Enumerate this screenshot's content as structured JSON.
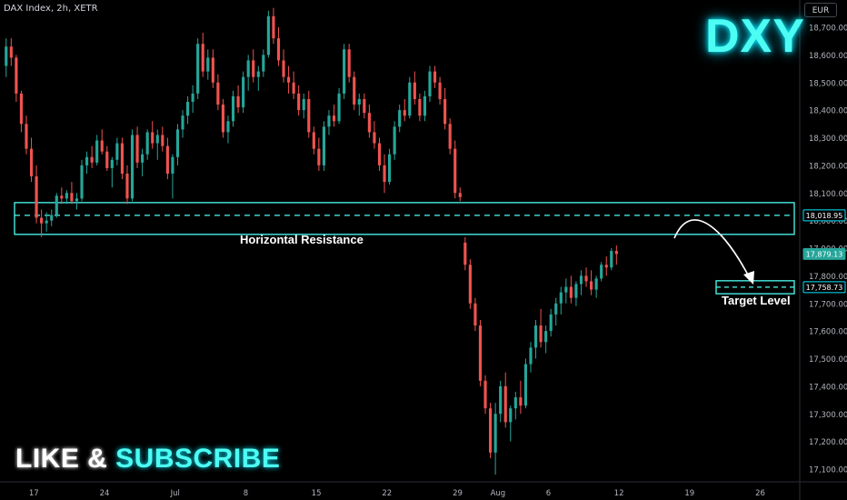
{
  "header": {
    "symbol_line": "DAX Index, 2h, XETR",
    "currency_button": "EUR"
  },
  "overlay": {
    "title": "DXY",
    "promo_part1": "LIKE & ",
    "promo_part2": "SUBSCRIBE",
    "resistance_label": "Horizontal Resistance",
    "target_label": "Target Level"
  },
  "colors": {
    "background": "#000000",
    "up_candle": "#26a69a",
    "down_candle": "#ef5350",
    "zone_stroke": "#4dfdf3",
    "accent_cyan": "#00e5ff",
    "arrow": "#ffffff",
    "last_price_tag": "#26a69a"
  },
  "chart_data": {
    "type": "candlestick",
    "ylim": [
      17060,
      18790
    ],
    "yticks": [
      17100,
      17200,
      17300,
      17400,
      17500,
      17600,
      17700,
      17800,
      17900,
      18000,
      18100,
      18200,
      18300,
      18400,
      18500,
      18600,
      18700
    ],
    "ytick_labels": [
      "17,100.00",
      "17,200.00",
      "17,300.00",
      "17,400.00",
      "17,500.00",
      "17,600.00",
      "17,700.00",
      "17,800.00",
      "17,900.00",
      "18,000.00",
      "18,100.00",
      "18,200.00",
      "18,300.00",
      "18,400.00",
      "18,500.00",
      "18,600.00",
      "18,700.00"
    ],
    "xticks": [
      {
        "label": "17",
        "bar": 6
      },
      {
        "label": "24",
        "bar": 20
      },
      {
        "label": "Jul",
        "bar": 34
      },
      {
        "label": "8",
        "bar": 48
      },
      {
        "label": "15",
        "bar": 62
      },
      {
        "label": "22",
        "bar": 76
      },
      {
        "label": "29",
        "bar": 90
      },
      {
        "label": "Aug",
        "bar": 98
      },
      {
        "label": "6",
        "bar": 108
      },
      {
        "label": "12",
        "bar": 122
      },
      {
        "label": "19",
        "bar": 136
      },
      {
        "label": "26",
        "bar": 150
      }
    ],
    "bars_visible_total": 158,
    "price_tags": [
      {
        "label": "18,018.95",
        "value": 18018.95,
        "kind": "level"
      },
      {
        "label": "17,879.13",
        "value": 17879.13,
        "kind": "last"
      },
      {
        "label": "17,758.73",
        "value": 17758.73,
        "kind": "target"
      }
    ],
    "resistance_zone": {
      "low": 17950,
      "high": 18065,
      "level": 18018.95,
      "from_bar": 0,
      "to_bar": 152
    },
    "target_zone": {
      "low": 17735,
      "high": 17782,
      "level": 17758.73,
      "from_bar": 136,
      "to_bar": 152
    },
    "candles": [
      [
        18560,
        18660,
        18520,
        18630
      ],
      [
        18630,
        18660,
        18560,
        18590
      ],
      [
        18590,
        18600,
        18430,
        18460
      ],
      [
        18460,
        18470,
        18320,
        18350
      ],
      [
        18350,
        18380,
        18240,
        18260
      ],
      [
        18260,
        18300,
        18140,
        18160
      ],
      [
        18160,
        18200,
        17990,
        18010
      ],
      [
        18010,
        18040,
        17940,
        17990
      ],
      [
        17990,
        18030,
        17960,
        18000
      ],
      [
        18000,
        18040,
        17980,
        18020
      ],
      [
        18020,
        18100,
        18010,
        18090
      ],
      [
        18090,
        18120,
        18060,
        18080
      ],
      [
        18080,
        18110,
        18060,
        18100
      ],
      [
        18100,
        18140,
        18060,
        18070
      ],
      [
        18070,
        18100,
        18040,
        18080
      ],
      [
        18080,
        18220,
        18070,
        18200
      ],
      [
        18200,
        18250,
        18170,
        18230
      ],
      [
        18230,
        18270,
        18190,
        18210
      ],
      [
        18210,
        18310,
        18200,
        18290
      ],
      [
        18290,
        18330,
        18240,
        18250
      ],
      [
        18250,
        18270,
        18180,
        18190
      ],
      [
        18190,
        18230,
        18120,
        18220
      ],
      [
        18220,
        18300,
        18200,
        18280
      ],
      [
        18280,
        18300,
        18150,
        18170
      ],
      [
        18170,
        18200,
        18060,
        18080
      ],
      [
        18080,
        18330,
        18070,
        18310
      ],
      [
        18310,
        18340,
        18190,
        18210
      ],
      [
        18210,
        18260,
        18160,
        18240
      ],
      [
        18240,
        18330,
        18220,
        18320
      ],
      [
        18320,
        18360,
        18260,
        18280
      ],
      [
        18280,
        18330,
        18220,
        18310
      ],
      [
        18310,
        18340,
        18250,
        18270
      ],
      [
        18270,
        18300,
        18150,
        18170
      ],
      [
        18170,
        18240,
        18080,
        18230
      ],
      [
        18230,
        18350,
        18200,
        18330
      ],
      [
        18330,
        18400,
        18300,
        18380
      ],
      [
        18380,
        18450,
        18350,
        18430
      ],
      [
        18430,
        18490,
        18390,
        18460
      ],
      [
        18460,
        18660,
        18440,
        18640
      ],
      [
        18640,
        18680,
        18520,
        18540
      ],
      [
        18540,
        18620,
        18510,
        18590
      ],
      [
        18590,
        18620,
        18480,
        18500
      ],
      [
        18500,
        18530,
        18400,
        18420
      ],
      [
        18420,
        18440,
        18300,
        18320
      ],
      [
        18320,
        18380,
        18280,
        18360
      ],
      [
        18360,
        18470,
        18340,
        18450
      ],
      [
        18450,
        18490,
        18390,
        18410
      ],
      [
        18410,
        18540,
        18390,
        18520
      ],
      [
        18520,
        18600,
        18470,
        18580
      ],
      [
        18580,
        18620,
        18500,
        18520
      ],
      [
        18520,
        18560,
        18470,
        18540
      ],
      [
        18540,
        18620,
        18520,
        18600
      ],
      [
        18600,
        18760,
        18590,
        18740
      ],
      [
        18740,
        18770,
        18640,
        18660
      ],
      [
        18660,
        18700,
        18560,
        18580
      ],
      [
        18580,
        18620,
        18500,
        18520
      ],
      [
        18520,
        18560,
        18460,
        18500
      ],
      [
        18500,
        18540,
        18440,
        18460
      ],
      [
        18460,
        18490,
        18380,
        18400
      ],
      [
        18400,
        18460,
        18370,
        18440
      ],
      [
        18440,
        18470,
        18300,
        18320
      ],
      [
        18320,
        18340,
        18240,
        18260
      ],
      [
        18260,
        18300,
        18180,
        18200
      ],
      [
        18200,
        18360,
        18180,
        18340
      ],
      [
        18340,
        18400,
        18310,
        18380
      ],
      [
        18380,
        18420,
        18340,
        18360
      ],
      [
        18360,
        18480,
        18350,
        18460
      ],
      [
        18460,
        18640,
        18440,
        18620
      ],
      [
        18620,
        18640,
        18500,
        18520
      ],
      [
        18520,
        18540,
        18400,
        18420
      ],
      [
        18420,
        18460,
        18380,
        18440
      ],
      [
        18440,
        18460,
        18370,
        18390
      ],
      [
        18390,
        18420,
        18300,
        18320
      ],
      [
        18320,
        18360,
        18260,
        18280
      ],
      [
        18280,
        18300,
        18180,
        18200
      ],
      [
        18200,
        18240,
        18100,
        18140
      ],
      [
        18140,
        18260,
        18130,
        18240
      ],
      [
        18240,
        18360,
        18220,
        18340
      ],
      [
        18340,
        18420,
        18320,
        18400
      ],
      [
        18400,
        18440,
        18360,
        18380
      ],
      [
        18380,
        18520,
        18370,
        18500
      ],
      [
        18500,
        18540,
        18420,
        18440
      ],
      [
        18440,
        18460,
        18360,
        18380
      ],
      [
        18380,
        18470,
        18360,
        18450
      ],
      [
        18450,
        18560,
        18430,
        18540
      ],
      [
        18540,
        18560,
        18480,
        18500
      ],
      [
        18500,
        18520,
        18420,
        18440
      ],
      [
        18440,
        18480,
        18330,
        18350
      ],
      [
        18350,
        18370,
        18240,
        18260
      ],
      [
        18260,
        18290,
        18080,
        18100
      ],
      [
        18100,
        18120,
        18070,
        18085
      ],
      [
        17920,
        17940,
        17820,
        17840
      ],
      [
        17840,
        17860,
        17680,
        17700
      ],
      [
        17700,
        17720,
        17600,
        17620
      ],
      [
        17620,
        17640,
        17400,
        17420
      ],
      [
        17420,
        17440,
        17300,
        17320
      ],
      [
        17320,
        17340,
        17140,
        17160
      ],
      [
        17160,
        17340,
        17080,
        17300
      ],
      [
        17300,
        17420,
        17270,
        17400
      ],
      [
        17400,
        17450,
        17250,
        17270
      ],
      [
        17270,
        17330,
        17200,
        17320
      ],
      [
        17320,
        17380,
        17280,
        17360
      ],
      [
        17360,
        17420,
        17300,
        17330
      ],
      [
        17330,
        17500,
        17320,
        17480
      ],
      [
        17480,
        17560,
        17450,
        17540
      ],
      [
        17540,
        17640,
        17500,
        17620
      ],
      [
        17620,
        17680,
        17540,
        17560
      ],
      [
        17560,
        17620,
        17520,
        17600
      ],
      [
        17600,
        17680,
        17580,
        17660
      ],
      [
        17660,
        17720,
        17620,
        17700
      ],
      [
        17700,
        17760,
        17660,
        17740
      ],
      [
        17740,
        17790,
        17700,
        17760
      ],
      [
        17760,
        17800,
        17700,
        17720
      ],
      [
        17720,
        17780,
        17690,
        17770
      ],
      [
        17770,
        17820,
        17730,
        17800
      ],
      [
        17800,
        17830,
        17760,
        17780
      ],
      [
        17780,
        17820,
        17730,
        17750
      ],
      [
        17750,
        17800,
        17720,
        17790
      ],
      [
        17790,
        17850,
        17780,
        17840
      ],
      [
        17840,
        17870,
        17800,
        17830
      ],
      [
        17830,
        17900,
        17820,
        17890
      ],
      [
        17890,
        17910,
        17840,
        17879
      ]
    ]
  }
}
